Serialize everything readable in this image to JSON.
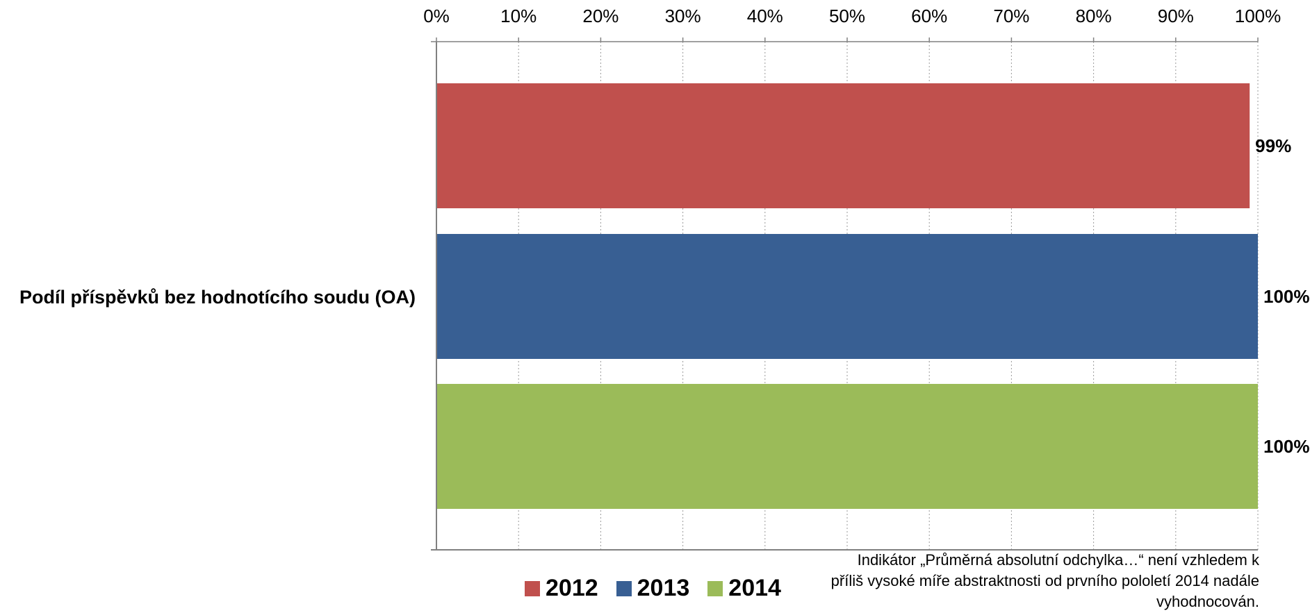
{
  "chart_data": {
    "type": "bar",
    "orientation": "horizontal",
    "categories": [
      "Podíl příspěvků bez hodnotícího soudu (OA)"
    ],
    "series": [
      {
        "name": "2012",
        "values": [
          0.99
        ],
        "color": "#C0504D",
        "label": "99%"
      },
      {
        "name": "2013",
        "values": [
          1.0
        ],
        "color": "#385F93",
        "label": "100%"
      },
      {
        "name": "2014",
        "values": [
          1.0
        ],
        "color": "#9BBB59",
        "label": "100%"
      }
    ],
    "xlim": [
      0,
      1
    ],
    "xticks": [
      "0%",
      "10%",
      "20%",
      "30%",
      "40%",
      "50%",
      "60%",
      "70%",
      "80%",
      "90%",
      "100%"
    ],
    "x_axis_position": "top",
    "grid": "vertical dotted",
    "legend_position": "bottom"
  },
  "note": "Indikátor „Průměrná absolutní odchylka…“ není vzhledem k příliš vysoké míře abstraktnosti od prvního pololetí 2014 nadále vyhodnocován."
}
